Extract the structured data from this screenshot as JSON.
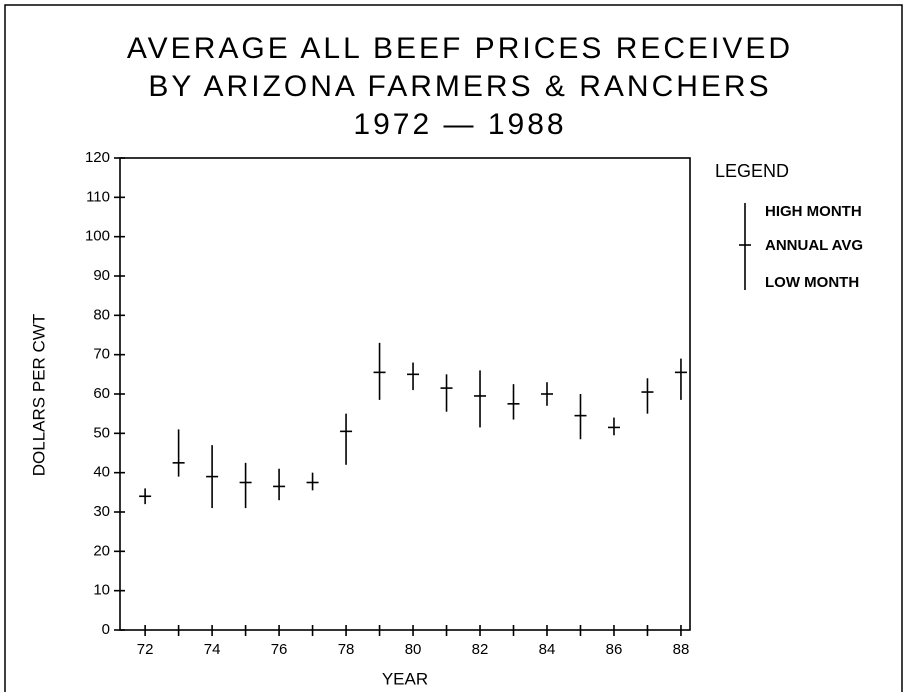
{
  "chart_data": {
    "type": "high-low",
    "title": [
      "AVERAGE ALL BEEF PRICES RECEIVED",
      "BY ARIZONA FARMERS & RANCHERS",
      "1972 — 1988"
    ],
    "x_label": "YEAR",
    "y_label": "DOLLARS PER CWT",
    "legend_title": "LEGEND",
    "x": [
      72,
      73,
      74,
      75,
      76,
      77,
      78,
      79,
      80,
      81,
      82,
      83,
      84,
      85,
      86,
      87,
      88
    ],
    "series": [
      {
        "name": "HIGH MONTH",
        "values": [
          36,
          51,
          47,
          42.5,
          41,
          40,
          55,
          73,
          68,
          65,
          66,
          62.5,
          63,
          60,
          54,
          64,
          69
        ]
      },
      {
        "name": "ANNUAL AVG",
        "values": [
          34,
          42.5,
          39,
          37.5,
          36.5,
          37.5,
          50.5,
          65.5,
          65,
          61.5,
          59.5,
          57.5,
          60,
          54.5,
          51.5,
          60.5,
          65.5
        ]
      },
      {
        "name": "LOW MONTH",
        "values": [
          32,
          39,
          31,
          31,
          33,
          35.5,
          42,
          58.5,
          61,
          55.5,
          51.5,
          53.5,
          57,
          48.5,
          49.5,
          55,
          58.5
        ]
      }
    ],
    "color": "#000000",
    "xlim": [
      71.25,
      88.27
    ],
    "xticks": [
      72,
      74,
      76,
      78,
      80,
      82,
      84,
      86,
      88
    ],
    "xminor_ticks": [
      73,
      75,
      77,
      79,
      81,
      83,
      85,
      87
    ],
    "ylim": [
      0,
      120
    ],
    "yticks": [
      0,
      10,
      20,
      30,
      40,
      50,
      60,
      70,
      80,
      90,
      100,
      110,
      120
    ]
  }
}
